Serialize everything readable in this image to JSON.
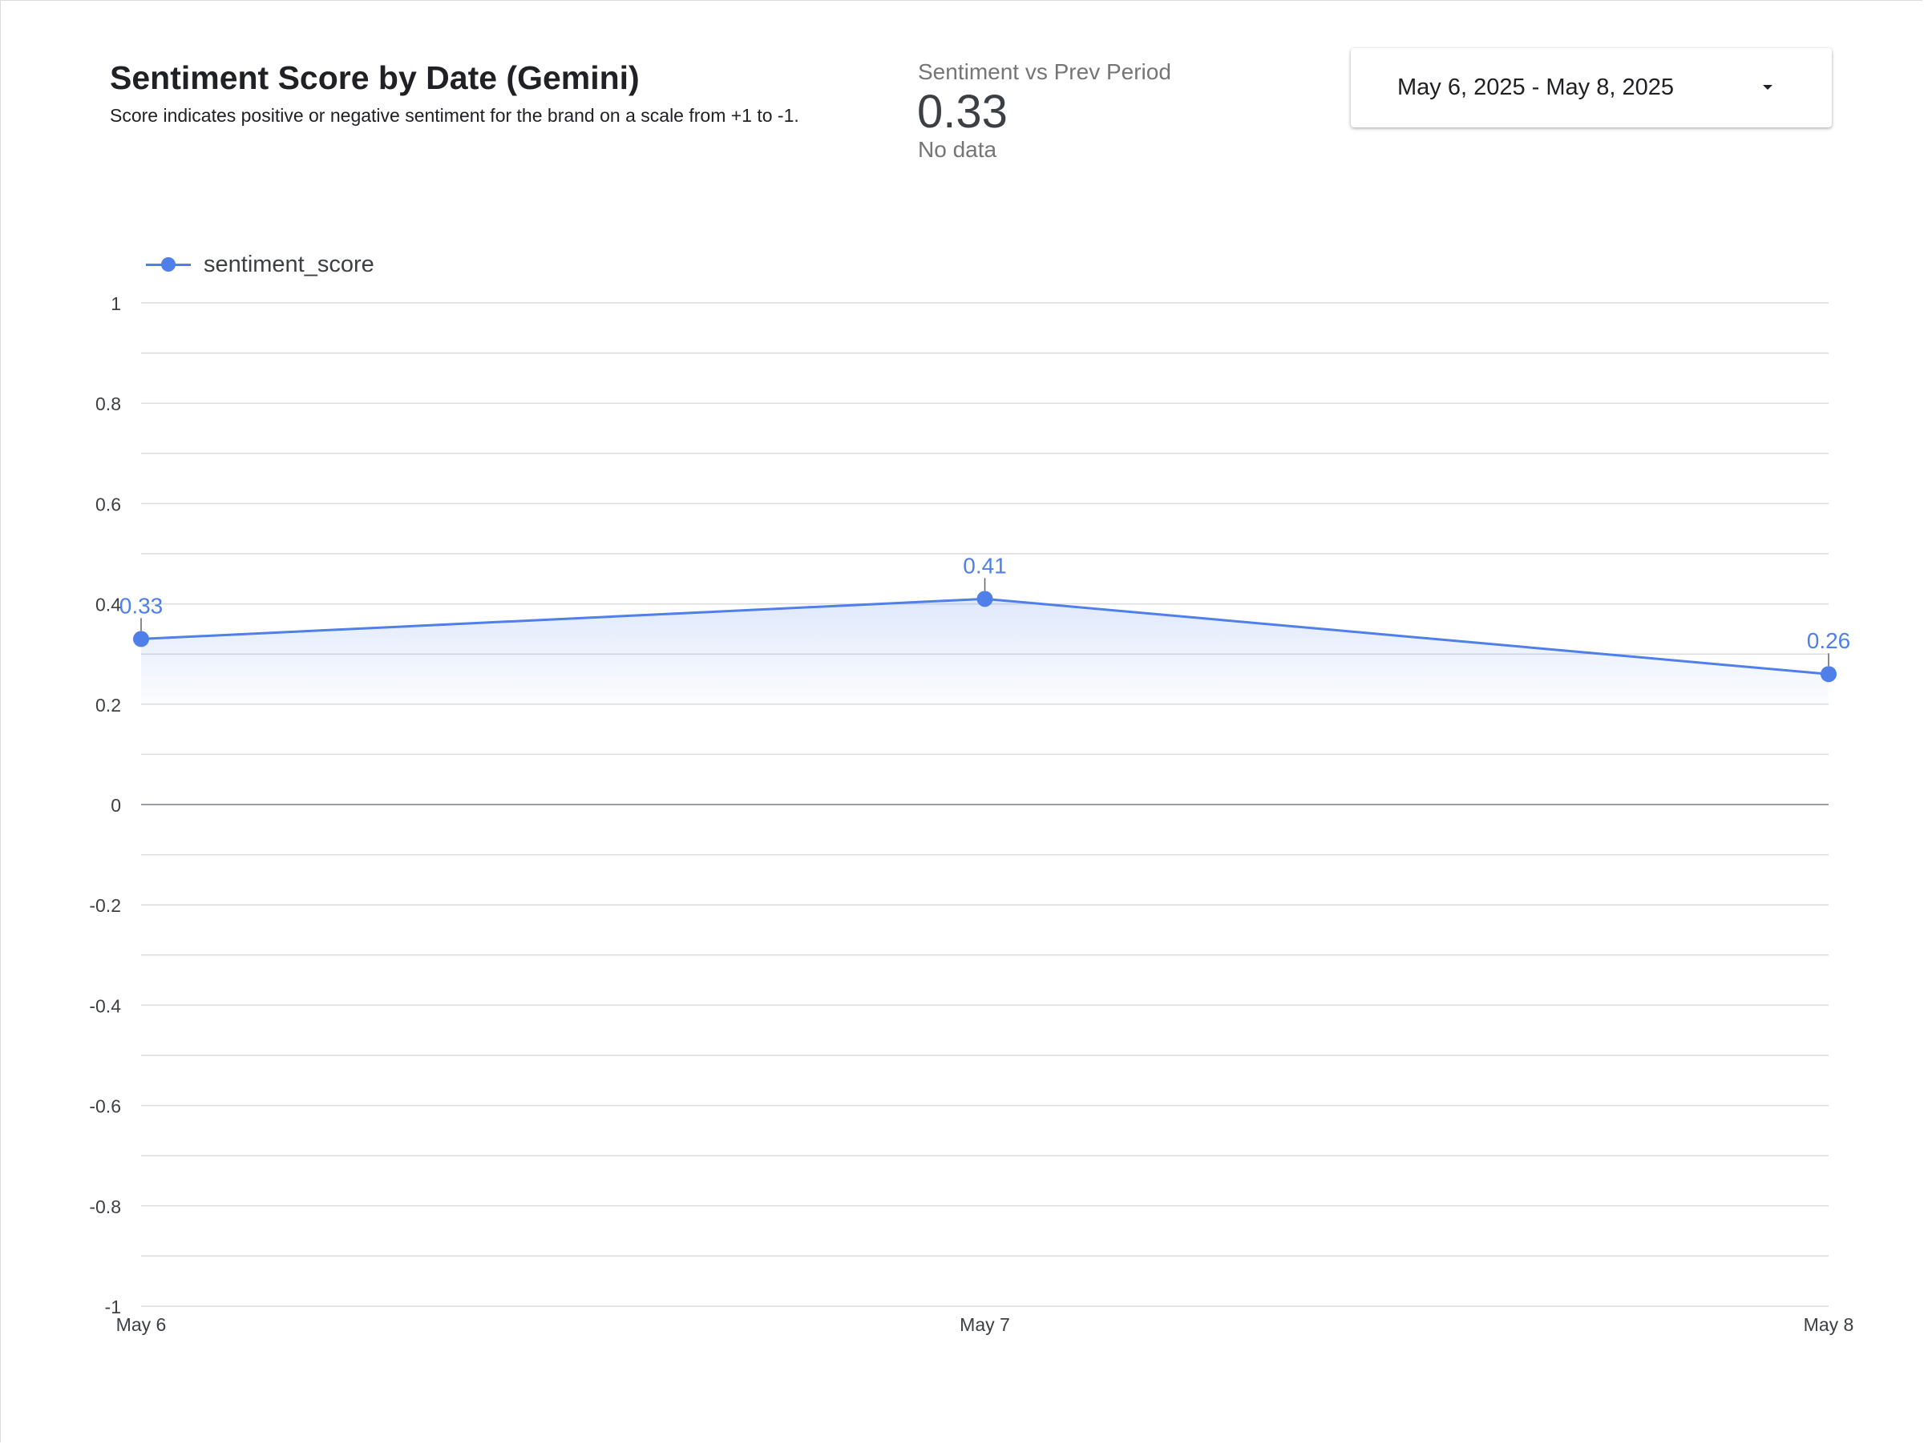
{
  "header": {
    "title": "Sentiment Score by Date (Gemini)",
    "subtitle": "Score indicates positive or negative sentiment for the brand on a scale from +1 to -1."
  },
  "scorecard": {
    "label": "Sentiment vs Prev Period",
    "value": "0.33",
    "comparison": "No data"
  },
  "date_range": {
    "label": "May 6, 2025 - May 8, 2025",
    "icon": "dropdown-arrow-icon"
  },
  "colors": {
    "series": "#4f7fe8",
    "gridline": "#dadce0",
    "zero_line": "#9aa0a6",
    "axis_text": "#3c4043"
  },
  "chart_data": {
    "type": "line",
    "title": "Sentiment Score by Date (Gemini)",
    "x": [
      "May 6",
      "May 7",
      "May 8"
    ],
    "series": [
      {
        "name": "sentiment_score",
        "values": [
          0.33,
          0.41,
          0.26
        ],
        "data_labels": [
          "0.33",
          "0.41",
          "0.26"
        ]
      }
    ],
    "ylim": [
      -1,
      1
    ],
    "y_ticks": [
      "1",
      "0.8",
      "0.6",
      "0.4",
      "0.2",
      "0",
      "-0.2",
      "-0.4",
      "-0.6",
      "-0.8",
      "-1"
    ],
    "y_tick_values": [
      1,
      0.8,
      0.6,
      0.4,
      0.2,
      0,
      -0.2,
      -0.4,
      -0.6,
      -0.8,
      -1
    ],
    "grid": true,
    "legend": "top-left",
    "area_fill": true
  }
}
